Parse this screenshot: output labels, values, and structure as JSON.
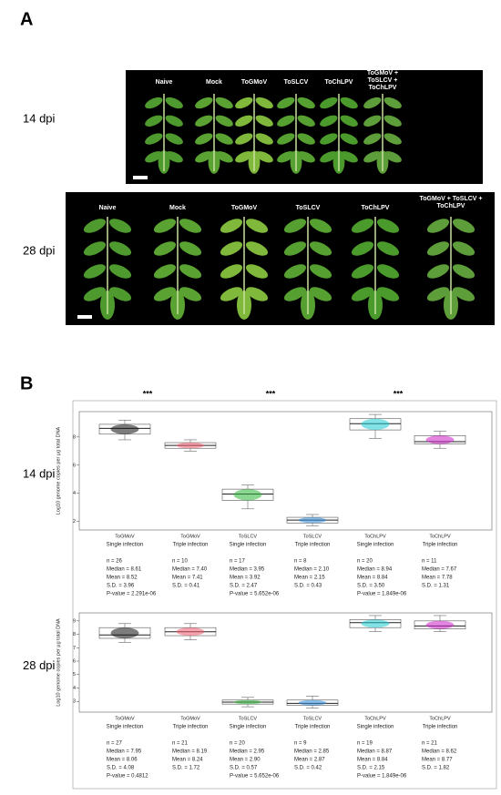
{
  "panel_a": {
    "label": "A",
    "rows": [
      {
        "label": "14 dpi",
        "treatments": [
          "Naive",
          "Mock",
          "ToGMoV",
          "ToSLCV",
          "ToChLPV",
          "ToGMoV + ToSLCV + ToChLPV"
        ]
      },
      {
        "label": "28 dpi",
        "treatments": [
          "Naive",
          "Mock",
          "ToGMoV",
          "ToSLCV",
          "ToChLPV",
          "ToGMoV + ToSLCV + ToChLPV"
        ]
      }
    ]
  },
  "panel_b_label": "B",
  "chart_data": [
    {
      "type": "box",
      "row_label": "14 dpi",
      "y_label": "Log10 genome copies per µg total DNA",
      "ylim": [
        1.4,
        9.8
      ],
      "yticks": [
        2,
        4,
        6,
        8
      ],
      "categories": [
        "ToGMoV",
        "ToGMoV",
        "ToSLCV",
        "ToSLCV",
        "ToChLPV",
        "ToChLPV"
      ],
      "infection": [
        "Single infection",
        "Triple infection",
        "Single infection",
        "Triple infection",
        "Single infection",
        "Triple infection"
      ],
      "significance": [
        "***",
        null,
        "***",
        null,
        "***",
        null
      ],
      "boxes": [
        {
          "color": "#111111",
          "whisker_low": 7.8,
          "q1": 8.2,
          "median": 8.61,
          "q3": 8.9,
          "whisker_high": 9.2
        },
        {
          "color": "#f05a6e",
          "whisker_low": 7.0,
          "q1": 7.2,
          "median": 7.4,
          "q3": 7.6,
          "whisker_high": 7.8
        },
        {
          "color": "#2bb534",
          "whisker_low": 2.9,
          "q1": 3.5,
          "median": 3.95,
          "q3": 4.3,
          "whisker_high": 4.6
        },
        {
          "color": "#2a86d8",
          "whisker_low": 1.7,
          "q1": 1.9,
          "median": 2.1,
          "q3": 2.3,
          "whisker_high": 2.5
        },
        {
          "color": "#1ecbd0",
          "whisker_low": 7.9,
          "q1": 8.5,
          "median": 8.94,
          "q3": 9.3,
          "whisker_high": 9.6
        },
        {
          "color": "#cc1fc8",
          "whisker_low": 7.2,
          "q1": 7.5,
          "median": 7.67,
          "q3": 8.1,
          "whisker_high": 8.4
        }
      ],
      "stats": [
        [
          "n = 26",
          "Median = 8.61",
          "Mean = 8.52",
          "S.D. = 3.96",
          "P-value = 2.291e-06"
        ],
        [
          "n = 10",
          "Median = 7.40",
          "Mean = 7.41",
          "S.D. = 0.41"
        ],
        [
          "n = 17",
          "Median = 3.95",
          "Mean = 3.92",
          "S.D. = 2.47",
          "P-value = 5.652e-06"
        ],
        [
          "n = 8",
          "Median = 2.10",
          "Mean = 2.15",
          "S.D. = 0.43"
        ],
        [
          "n = 20",
          "Median = 8.94",
          "Mean = 8.84",
          "S.D. = 3.50",
          "P-value = 1.849e-06"
        ],
        [
          "n = 11",
          "Median = 7.67",
          "Mean = 7.78",
          "S.D. = 1.31"
        ]
      ]
    },
    {
      "type": "box",
      "row_label": "28 dpi",
      "y_label": "Log10 genome copies per µg total DNA",
      "ylim": [
        2.2,
        9.6
      ],
      "yticks": [
        3,
        4,
        5,
        6,
        7,
        8,
        9
      ],
      "categories": [
        "ToGMoV",
        "ToGMoV",
        "ToSLCV",
        "ToSLCV",
        "ToChLPV",
        "ToChLPV"
      ],
      "infection": [
        "Single infection",
        "Triple infection",
        "Single infection",
        "Triple infection",
        "Single infection",
        "Triple infection"
      ],
      "significance": [
        null,
        null,
        null,
        null,
        null,
        null
      ],
      "boxes": [
        {
          "color": "#111111",
          "whisker_low": 7.4,
          "q1": 7.7,
          "median": 7.95,
          "q3": 8.5,
          "whisker_high": 8.8
        },
        {
          "color": "#f05a6e",
          "whisker_low": 7.6,
          "q1": 7.9,
          "median": 8.19,
          "q3": 8.5,
          "whisker_high": 8.8
        },
        {
          "color": "#2bb534",
          "whisker_low": 2.6,
          "q1": 2.8,
          "median": 2.95,
          "q3": 3.1,
          "whisker_high": 3.3
        },
        {
          "color": "#2a86d8",
          "whisker_low": 2.5,
          "q1": 2.7,
          "median": 2.85,
          "q3": 3.1,
          "whisker_high": 3.4
        },
        {
          "color": "#1ecbd0",
          "whisker_low": 8.2,
          "q1": 8.5,
          "median": 8.87,
          "q3": 9.1,
          "whisker_high": 9.4
        },
        {
          "color": "#cc1fc8",
          "whisker_low": 8.2,
          "q1": 8.4,
          "median": 8.62,
          "q3": 9.0,
          "whisker_high": 9.4
        }
      ],
      "stats": [
        [
          "n = 27",
          "Median = 7.95",
          "Mean = 8.06",
          "S.D. = 4.08",
          "P-value = 0.4812"
        ],
        [
          "n = 21",
          "Median = 8.19",
          "Mean = 8.24",
          "S.D. = 1.72"
        ],
        [
          "n = 20",
          "Median = 2.95",
          "Mean = 2.90",
          "S.D. = 0.57",
          "P-value = 5.652e-06"
        ],
        [
          "n = 9",
          "Median = 2.85",
          "Mean = 2.87",
          "S.D. = 0.42"
        ],
        [
          "n = 19",
          "Median = 8.87",
          "Mean = 8.84",
          "S.D. = 2.15",
          "P-value = 1.849e-06"
        ],
        [
          "n = 21",
          "Median = 8.62",
          "Mean = 8.77",
          "S.D. = 1.82"
        ]
      ]
    }
  ]
}
